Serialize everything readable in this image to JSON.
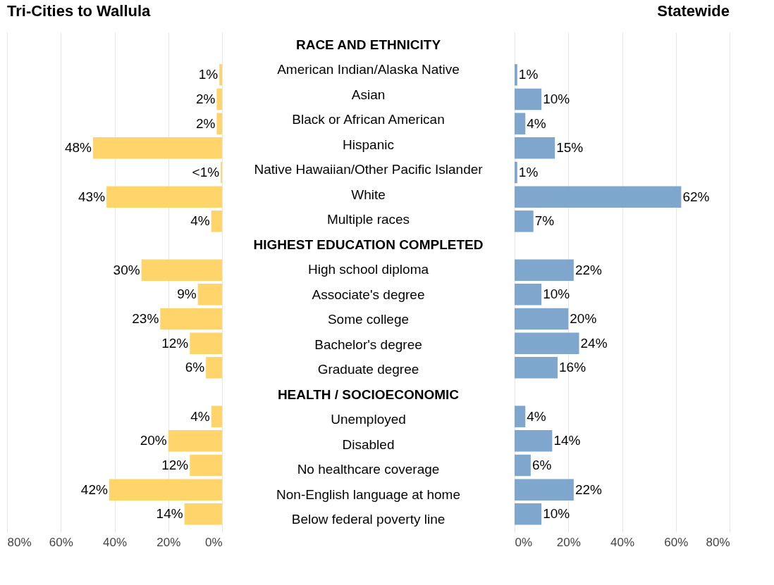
{
  "chart_data": [
    {
      "type": "bar",
      "orientation": "horizontal",
      "title": "Tri-Cities to Wallula",
      "categories": [
        "RACE AND ETHNICITY",
        "American Indian/Alaska Native",
        "Asian",
        "Black or African American",
        "Hispanic",
        "Native Hawaiian/Other Pacific Islander",
        "White",
        "Multiple races",
        "HIGHEST EDUCATION COMPLETED",
        "High school diploma",
        "Associate's degree",
        "Some college",
        "Bachelor's degree",
        "Graduate degree",
        "HEALTH / SOCIOECONOMIC",
        "Unemployed",
        "Disabled",
        "No healthcare coverage",
        "Non-English language at home",
        "Below federal poverty line"
      ],
      "values": [
        null,
        1,
        2,
        2,
        48,
        0.5,
        43,
        4,
        null,
        30,
        9,
        23,
        12,
        6,
        null,
        4,
        20,
        12,
        42,
        14
      ],
      "value_labels": [
        null,
        "1%",
        "2%",
        "2%",
        "48%",
        "<1%",
        "43%",
        "4%",
        null,
        "30%",
        "9%",
        "23%",
        "12%",
        "6%",
        null,
        "4%",
        "20%",
        "12%",
        "42%",
        "14%"
      ],
      "color": "#ffd56b",
      "xlim": [
        80,
        0
      ],
      "xticks": [
        {
          "value": 80,
          "label": "80%"
        },
        {
          "value": 60,
          "label": "60%"
        },
        {
          "value": 40,
          "label": "40%"
        },
        {
          "value": 20,
          "label": "20%"
        },
        {
          "value": 0,
          "label": "0%"
        }
      ],
      "grid": "x"
    },
    {
      "type": "bar",
      "orientation": "horizontal",
      "title": "Statewide",
      "categories": [
        "RACE AND ETHNICITY",
        "American Indian/Alaska Native",
        "Asian",
        "Black or African American",
        "Hispanic",
        "Native Hawaiian/Other Pacific Islander",
        "White",
        "Multiple races",
        "HIGHEST EDUCATION COMPLETED",
        "High school diploma",
        "Associate's degree",
        "Some college",
        "Bachelor's degree",
        "Graduate degree",
        "HEALTH / SOCIOECONOMIC",
        "Unemployed",
        "Disabled",
        "No healthcare coverage",
        "Non-English language at home",
        "Below federal poverty line"
      ],
      "values": [
        null,
        1,
        10,
        4,
        15,
        1,
        62,
        7,
        null,
        22,
        10,
        20,
        24,
        16,
        null,
        4,
        14,
        6,
        22,
        10
      ],
      "value_labels": [
        null,
        "1%",
        "10%",
        "4%",
        "15%",
        "1%",
        "62%",
        "7%",
        null,
        "22%",
        "10%",
        "20%",
        "24%",
        "16%",
        null,
        "4%",
        "14%",
        "6%",
        "22%",
        "10%"
      ],
      "color": "#7fa7cd",
      "xlim": [
        0,
        80
      ],
      "xticks": [
        {
          "value": 0,
          "label": "0%"
        },
        {
          "value": 20,
          "label": "20%"
        },
        {
          "value": 40,
          "label": "40%"
        },
        {
          "value": 60,
          "label": "60%"
        },
        {
          "value": 80,
          "label": "80%"
        }
      ],
      "tick_labels": "x",
      "grid": "x"
    }
  ]
}
